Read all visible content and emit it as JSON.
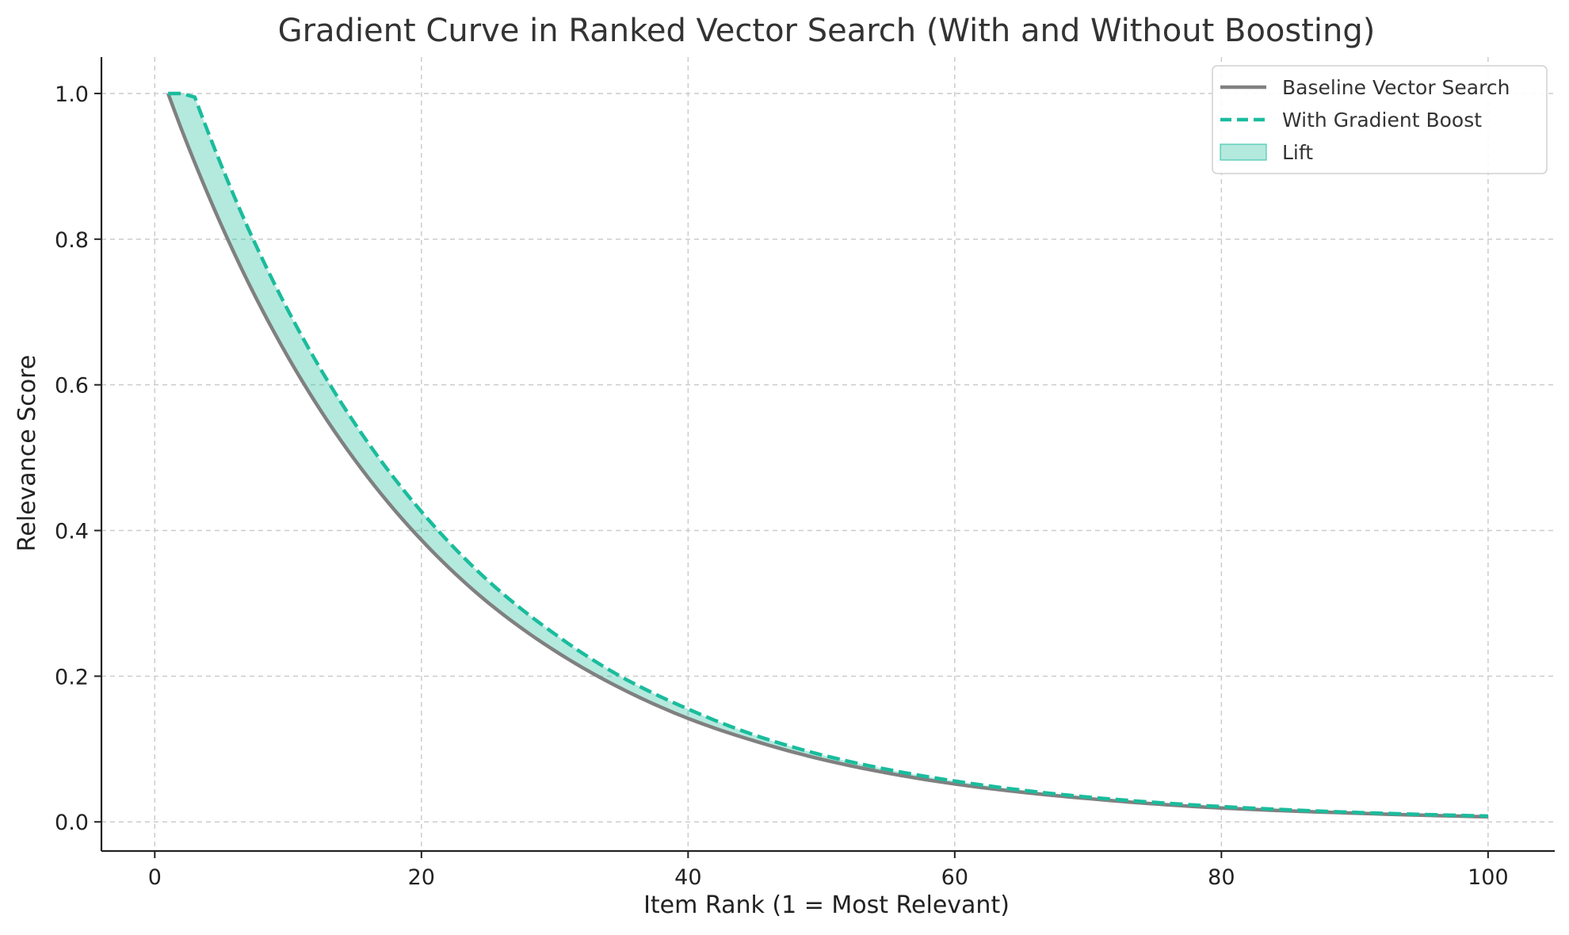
{
  "chart_data": {
    "type": "line",
    "title": "Gradient Curve in Ranked Vector Search (With and Without Boosting)",
    "xlabel": "Item Rank (1 = Most Relevant)",
    "ylabel": "Relevance Score",
    "xlim": [
      -4,
      105
    ],
    "ylim": [
      -0.04,
      1.05
    ],
    "xticks": [
      0,
      20,
      40,
      60,
      80,
      100
    ],
    "yticks": [
      0.0,
      0.2,
      0.4,
      0.6,
      0.8,
      1.0
    ],
    "xtick_labels": [
      "0",
      "20",
      "40",
      "60",
      "80",
      "100"
    ],
    "ytick_labels": [
      "0.0",
      "0.2",
      "0.4",
      "0.6",
      "0.8",
      "1.0"
    ],
    "grid": true,
    "legend_position": "top-right",
    "x": [
      1,
      2,
      3,
      5,
      7,
      10,
      15,
      20,
      25,
      30,
      35,
      40,
      45,
      50,
      60,
      70,
      80,
      90,
      100
    ],
    "series": [
      {
        "name": "Baseline Vector Search",
        "color": "#808080",
        "style": "solid",
        "values": [
          1.0,
          0.951,
          0.905,
          0.819,
          0.741,
          0.638,
          0.497,
          0.387,
          0.301,
          0.235,
          0.183,
          0.142,
          0.111,
          0.086,
          0.052,
          0.032,
          0.019,
          0.012,
          0.007
        ]
      },
      {
        "name": "With Gradient Boost",
        "color": "#1abc9c",
        "style": "dashed",
        "values": [
          1.0,
          1.0,
          0.995,
          0.901,
          0.815,
          0.702,
          0.547,
          0.426,
          0.331,
          0.258,
          0.199,
          0.155,
          0.119,
          0.092,
          0.056,
          0.034,
          0.021,
          0.013,
          0.008
        ]
      }
    ],
    "fill_between": {
      "name": "Lift",
      "color": "#1abc9c",
      "opacity": 0.33,
      "lower": "Baseline Vector Search",
      "upper": "With Gradient Boost"
    }
  }
}
